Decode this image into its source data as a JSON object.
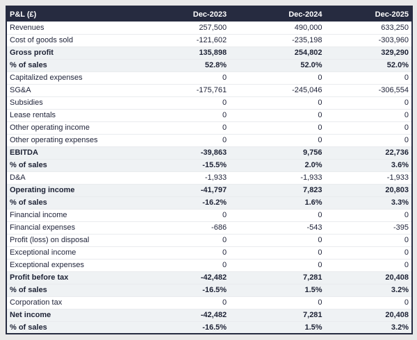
{
  "colors": {
    "header_background": "#262b40",
    "header_text": "#ffffff",
    "emphasis_row_background": "#eff2f4",
    "body_text": "#20243a",
    "table_border": "#262b40",
    "row_divider": "#e9ebee",
    "page_background": "#e9e9e9"
  },
  "chart_data": {
    "type": "table",
    "title": "P&L (£)",
    "columns": [
      "P&L (£)",
      "Dec-2023",
      "Dec-2024",
      "Dec-2025"
    ],
    "rows": [
      {
        "label": "Revenues",
        "values": [
          "257,500",
          "490,000",
          "633,250"
        ],
        "emphasis": false
      },
      {
        "label": "Cost of goods sold",
        "values": [
          "-121,602",
          "-235,198",
          "-303,960"
        ],
        "emphasis": false
      },
      {
        "label": "Gross profit",
        "values": [
          "135,898",
          "254,802",
          "329,290"
        ],
        "emphasis": true
      },
      {
        "label": "% of sales",
        "values": [
          "52.8%",
          "52.0%",
          "52.0%"
        ],
        "emphasis": true
      },
      {
        "label": "Capitalized expenses",
        "values": [
          "0",
          "0",
          "0"
        ],
        "emphasis": false
      },
      {
        "label": "SG&A",
        "values": [
          "-175,761",
          "-245,046",
          "-306,554"
        ],
        "emphasis": false
      },
      {
        "label": "Subsidies",
        "values": [
          "0",
          "0",
          "0"
        ],
        "emphasis": false
      },
      {
        "label": "Lease rentals",
        "values": [
          "0",
          "0",
          "0"
        ],
        "emphasis": false
      },
      {
        "label": "Other operating income",
        "values": [
          "0",
          "0",
          "0"
        ],
        "emphasis": false
      },
      {
        "label": "Other operating expenses",
        "values": [
          "0",
          "0",
          "0"
        ],
        "emphasis": false
      },
      {
        "label": "EBITDA",
        "values": [
          "-39,863",
          "9,756",
          "22,736"
        ],
        "emphasis": true
      },
      {
        "label": "% of sales",
        "values": [
          "-15.5%",
          "2.0%",
          "3.6%"
        ],
        "emphasis": true
      },
      {
        "label": "D&A",
        "values": [
          "-1,933",
          "-1,933",
          "-1,933"
        ],
        "emphasis": false
      },
      {
        "label": "Operating income",
        "values": [
          "-41,797",
          "7,823",
          "20,803"
        ],
        "emphasis": true
      },
      {
        "label": "% of sales",
        "values": [
          "-16.2%",
          "1.6%",
          "3.3%"
        ],
        "emphasis": true
      },
      {
        "label": "Financial income",
        "values": [
          "0",
          "0",
          "0"
        ],
        "emphasis": false
      },
      {
        "label": "Financial expenses",
        "values": [
          "-686",
          "-543",
          "-395"
        ],
        "emphasis": false
      },
      {
        "label": "Profit (loss) on disposal",
        "values": [
          "0",
          "0",
          "0"
        ],
        "emphasis": false
      },
      {
        "label": "Exceptional income",
        "values": [
          "0",
          "0",
          "0"
        ],
        "emphasis": false
      },
      {
        "label": "Exceptional expenses",
        "values": [
          "0",
          "0",
          "0"
        ],
        "emphasis": false
      },
      {
        "label": "Profit before tax",
        "values": [
          "-42,482",
          "7,281",
          "20,408"
        ],
        "emphasis": true
      },
      {
        "label": "% of sales",
        "values": [
          "-16.5%",
          "1.5%",
          "3.2%"
        ],
        "emphasis": true
      },
      {
        "label": "Corporation tax",
        "values": [
          "0",
          "0",
          "0"
        ],
        "emphasis": false
      },
      {
        "label": "Net income",
        "values": [
          "-42,482",
          "7,281",
          "20,408"
        ],
        "emphasis": true
      },
      {
        "label": "% of sales",
        "values": [
          "-16.5%",
          "1.5%",
          "3.2%"
        ],
        "emphasis": true
      }
    ]
  }
}
